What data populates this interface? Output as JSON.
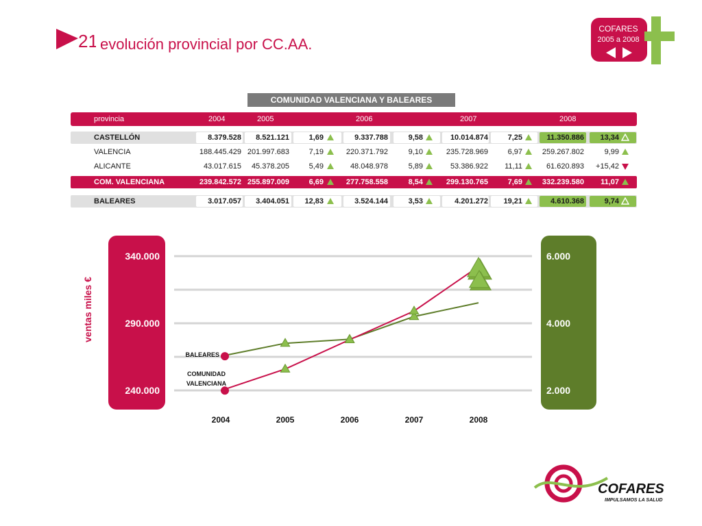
{
  "slide": {
    "number": "21",
    "title": "evolución provincial por CC.AA."
  },
  "logo_top": {
    "line1": "COFARES",
    "line2": "2005 a 2008"
  },
  "logo_bottom": {
    "name": "COFARES",
    "tagline": "IMPULSAMOS LA SALUD"
  },
  "table": {
    "caption": "COMUNIDAD VALENCIANA Y BALEARES",
    "headers": [
      "provincia",
      "2004",
      "2005",
      "2006",
      "2007",
      "2008"
    ],
    "rows": [
      {
        "name": "CASTELLÓN",
        "v2004": "8.379.528",
        "v2005": "8.521.121",
        "p2005": "1,69",
        "v2006": "9.337.788",
        "p2006": "9,58",
        "v2007": "10.014.874",
        "p2007": "7,25",
        "v2008": "11.350.886",
        "p2008": "13,34",
        "t2005": "up",
        "t2006": "up",
        "t2007": "up",
        "t2008": "up-outline"
      },
      {
        "name": "VALENCIA",
        "v2004": "188.445.429",
        "v2005": "201.997.683",
        "p2005": "7,19",
        "v2006": "220.371.792",
        "p2006": "9,10",
        "v2007": "235.728.969",
        "p2007": "6,97",
        "v2008": "259.267.802",
        "p2008": "9,99",
        "t2005": "up",
        "t2006": "up",
        "t2007": "up",
        "t2008": "up"
      },
      {
        "name": "ALICANTE",
        "v2004": "43.017.615",
        "v2005": "45.378.205",
        "p2005": "5,49",
        "v2006": "48.048.978",
        "p2006": "5,89",
        "v2007": "53.386.922",
        "p2007": "11,11",
        "v2008": "61.620.893",
        "p2008": "+15,42",
        "t2005": "up",
        "t2006": "up",
        "t2007": "up",
        "t2008": "down"
      },
      {
        "name": "COM. VALENCIANA",
        "v2004": "239.842.572",
        "v2005": "255.897.009",
        "p2005": "6,69",
        "v2006": "277.758.558",
        "p2006": "8,54",
        "v2007": "299.130.765",
        "p2007": "7,69",
        "v2008": "332.239.580",
        "p2008": "11,07",
        "t2005": "up",
        "t2006": "up",
        "t2007": "up",
        "t2008": "up"
      },
      {
        "name": "BALEARES",
        "v2004": "3.017.057",
        "v2005": "3.404.051",
        "p2005": "12,83",
        "v2006": "3.524.144",
        "p2006": "3,53",
        "v2007": "4.201.272",
        "p2007": "19,21",
        "v2008": "4.610.368",
        "p2008": "9,74",
        "t2005": "up",
        "t2006": "up",
        "t2007": "up",
        "t2008": "up-outline"
      }
    ]
  },
  "colors": {
    "accent": "#c8104a",
    "green": "#5e7d2a",
    "light_green": "#8cbf4d",
    "grey": "#7a7a7a"
  },
  "chart_data": {
    "type": "line",
    "ylabel": "ventas miles €",
    "x": [
      "2004",
      "2005",
      "2006",
      "2007",
      "2008"
    ],
    "left_axis": {
      "ticks": [
        "340.000",
        "290.000",
        "240.000"
      ],
      "ylim": [
        240000,
        340000
      ]
    },
    "right_axis": {
      "ticks": [
        "6.000",
        "4.000",
        "2.000"
      ],
      "ylim": [
        2000,
        6000
      ]
    },
    "series": [
      {
        "name": "COMUNIDAD VALENCIANA",
        "axis": "left",
        "color": "#c8104a",
        "values": [
          239842.572,
          255897.009,
          277758.558,
          299130.765,
          332239.58
        ]
      },
      {
        "name": "BALEARES",
        "axis": "right",
        "color": "#5e7d2a",
        "values": [
          3017.057,
          3404.051,
          3524.144,
          4201.272,
          4610.368
        ]
      }
    ],
    "grid": true
  }
}
